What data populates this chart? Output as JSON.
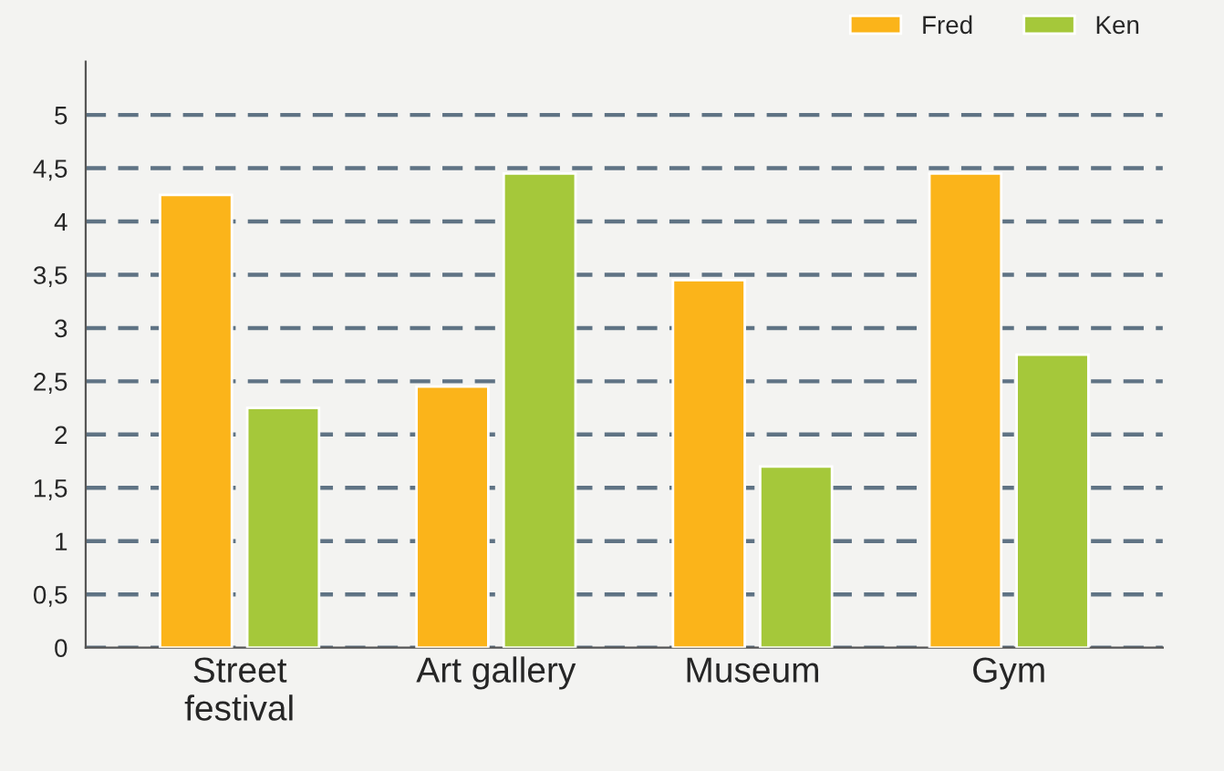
{
  "chart_data": {
    "type": "bar",
    "categories": [
      "Street\nfestival",
      "Art gallery",
      "Museum",
      "Gym"
    ],
    "series": [
      {
        "name": "Fred",
        "color": "#fbb41a",
        "values": [
          4.25,
          2.45,
          3.45,
          4.45
        ]
      },
      {
        "name": "Ken",
        "color": "#a5c83a",
        "values": [
          2.25,
          4.45,
          1.7,
          2.75
        ]
      }
    ],
    "ylim": [
      0,
      5.5
    ],
    "yticks": [
      0,
      {
        "value": 0.5,
        "label": "0,5"
      },
      1,
      {
        "value": 1.5,
        "label": "1,5"
      },
      2,
      {
        "value": 2.5,
        "label": "2,5"
      },
      3,
      {
        "value": 3.5,
        "label": "3,5"
      },
      4,
      {
        "value": 4.5,
        "label": "4,5"
      },
      5
    ],
    "grid": "y",
    "legend": "top right"
  }
}
